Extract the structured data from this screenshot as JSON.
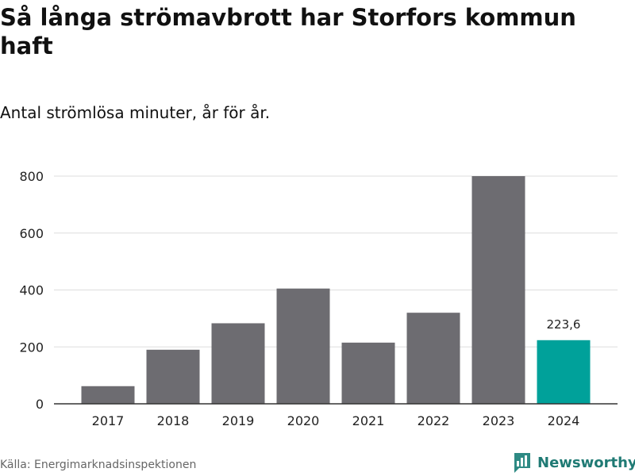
{
  "chart_data": {
    "type": "bar",
    "title": "Så långa strömavbrott har Storfors kommun haft",
    "subtitle": "Antal strömlösa minuter, år för år.",
    "xlabel": "",
    "ylabel": "",
    "categories": [
      "2017",
      "2018",
      "2019",
      "2020",
      "2021",
      "2022",
      "2023",
      "2024"
    ],
    "values": [
      62,
      190,
      283,
      405,
      215,
      320,
      800,
      223.6
    ],
    "yticks": [
      0,
      200,
      400,
      600,
      800
    ],
    "ylim": [
      0,
      800
    ],
    "grid": true,
    "highlight": {
      "category": "2024",
      "label": "223,6"
    },
    "colors": {
      "bar": "#6d6c71",
      "highlight": "#00a19a",
      "grid": "#dddddd",
      "axis": "#333333"
    }
  },
  "source": "Källa: Energimarknadsinspektionen",
  "logo": {
    "text": "Newsworthy",
    "icon": "bar-chart-logo-icon",
    "color": "#1f7a74"
  }
}
